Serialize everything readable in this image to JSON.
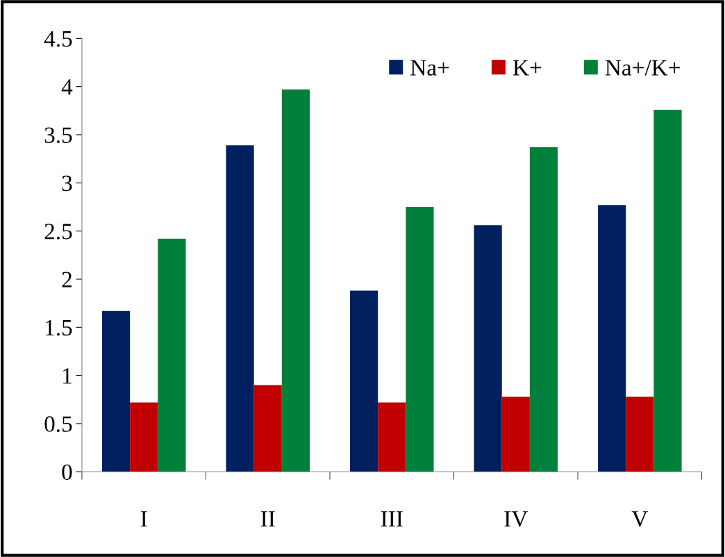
{
  "chart_data": {
    "type": "bar",
    "categories": [
      "I",
      "II",
      "III",
      "IV",
      "V"
    ],
    "series": [
      {
        "name": "Na+",
        "color": "#002060",
        "values": [
          1.67,
          3.39,
          1.88,
          2.56,
          2.77
        ]
      },
      {
        "name": "K+",
        "color": "#c00000",
        "values": [
          0.72,
          0.9,
          0.72,
          0.78,
          0.78
        ]
      },
      {
        "name": "Na+/K+",
        "color": "#00803a",
        "values": [
          2.42,
          3.97,
          2.75,
          3.37,
          3.76
        ]
      }
    ],
    "ylim": [
      0,
      4.5
    ],
    "yticks": [
      0,
      0.5,
      1,
      1.5,
      2,
      2.5,
      3,
      3.5,
      4,
      4.5
    ],
    "grid": false,
    "legend": "top right"
  }
}
